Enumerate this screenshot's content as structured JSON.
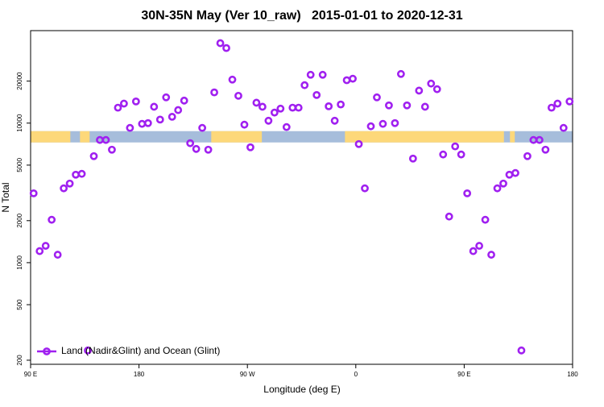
{
  "chart_data": {
    "type": "scatter",
    "title": "30N-35N May (Ver 10_raw)   2015-01-01 to 2020-12-31",
    "xlabel": "Longitude (deg E)",
    "ylabel": "N Total",
    "log_y": true,
    "legend": "bottom-left",
    "xlim": [
      90,
      540
    ],
    "xticks": [
      {
        "value": 90,
        "label": "90 E"
      },
      180,
      {
        "value": 270,
        "label": "90 W"
      },
      {
        "value": 360,
        "label": "0"
      },
      {
        "value": 450,
        "label": "90 E"
      },
      {
        "value": 540,
        "label": "180"
      }
    ],
    "ylim": [
      187,
      46000
    ],
    "yticks": [
      200,
      500,
      1000,
      2000,
      5000,
      10000,
      20000
    ],
    "strip": {
      "ylim": [
        7270,
        8760
      ],
      "ocean_color": "#a6bddb",
      "land_color": "#fdd87a",
      "land": [
        [
          90,
          123
        ],
        [
          131,
          139
        ],
        [
          240,
          282
        ],
        [
          351,
          483
        ],
        [
          488,
          492
        ]
      ]
    },
    "series": [
      {
        "name": "Land (Nadir&Glint) and Ocean (Glint)",
        "color": "#a020f0",
        "x": [
          92.5,
          97.5,
          102.5,
          107.5,
          112.5,
          117.5,
          122.5,
          127.5,
          132.5,
          137.5,
          142.5,
          147.5,
          152.5,
          157.5,
          162.5,
          167.5,
          172.5,
          177.5,
          182.5,
          187.5,
          192.5,
          197.5,
          202.5,
          207.5,
          212.5,
          217.5,
          222.5,
          227.5,
          232.5,
          237.5,
          242.5,
          247.5,
          252.5,
          257.5,
          262.5,
          267.5,
          272.5,
          277.5,
          282.5,
          287.5,
          292.5,
          297.5,
          302.5,
          307.5,
          312.5,
          317.5,
          322.5,
          327.5,
          332.5,
          337.5,
          342.5,
          347.5,
          352.5,
          357.5,
          362.5,
          367.5,
          372.5,
          377.5,
          382.5,
          387.5,
          392.5,
          397.5,
          402.5,
          407.5,
          412.5,
          417.5,
          422.5,
          427.5,
          432.5,
          437.5,
          442.5,
          447.5,
          452.5,
          457.5,
          462.5,
          467.5,
          472.5,
          477.5,
          482.5,
          487.5,
          492.5,
          497.5,
          502.5,
          507.5,
          512.5,
          517.5,
          522.5,
          527.5,
          532.5,
          537.5
        ],
        "values": [
          3140,
          1210,
          1320,
          2030,
          1140,
          3410,
          3690,
          4270,
          4330,
          235,
          5800,
          7570,
          7570,
          6450,
          12900,
          13800,
          9240,
          14300,
          9880,
          10000,
          13100,
          10600,
          15300,
          11100,
          12400,
          14500,
          7180,
          6530,
          9240,
          6450,
          16600,
          37400,
          34500,
          20500,
          15700,
          9750,
          6710,
          14000,
          13100,
          10400,
          11900,
          12700,
          9370,
          12900,
          12900,
          18700,
          22200,
          15900,
          22200,
          13200,
          10400,
          13600,
          20300,
          20800,
          7080,
          3410,
          9490,
          15300,
          9880,
          13400,
          10000,
          22500,
          13400,
          5570,
          17100,
          13100,
          19200,
          17500,
          5960,
          2140,
          6810,
          5960,
          3140,
          1210,
          1320,
          2030,
          1140,
          3410,
          3690,
          4270,
          4390,
          235,
          5800,
          7570,
          7570,
          6450,
          12900,
          13800,
          9240,
          14300
        ]
      }
    ]
  }
}
